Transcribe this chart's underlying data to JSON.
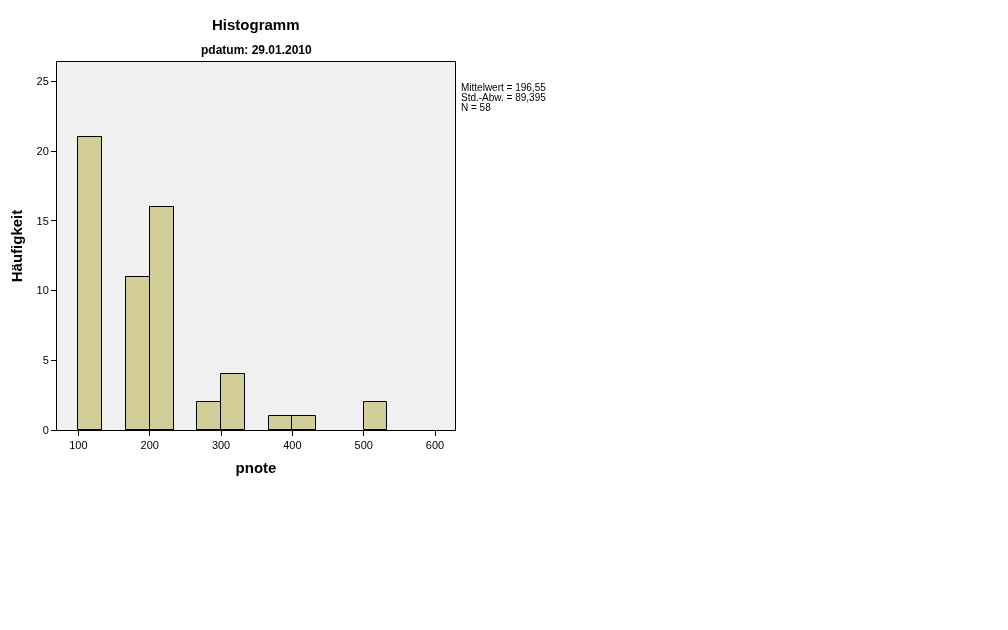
{
  "chart_data": {
    "type": "histogram",
    "title": "Histogramm",
    "subtitle": "pdatum: 29.01.2010",
    "xlabel": "pnote",
    "ylabel": "Häufigkeit",
    "bins": [
      100,
      133.33,
      166.67,
      200,
      233.33,
      266.67,
      300,
      333.33,
      366.67,
      400,
      433.33,
      466.67,
      500,
      533.33
    ],
    "values": [
      21,
      0,
      11,
      16,
      0,
      2,
      4,
      0,
      1,
      1,
      0,
      0,
      2
    ],
    "color": "#d3ce97",
    "xlim": [
      70,
      628
    ],
    "xticks": [
      100,
      200,
      300,
      400,
      500,
      600
    ],
    "ylim": [
      0,
      26.4
    ],
    "yticks": [
      0,
      5,
      10,
      15,
      20,
      25
    ],
    "grid": false,
    "legend": false,
    "annotations": [
      "Mittelwert = 196,55",
      "Std.-Abw. = 89,395",
      "N = 58"
    ]
  }
}
